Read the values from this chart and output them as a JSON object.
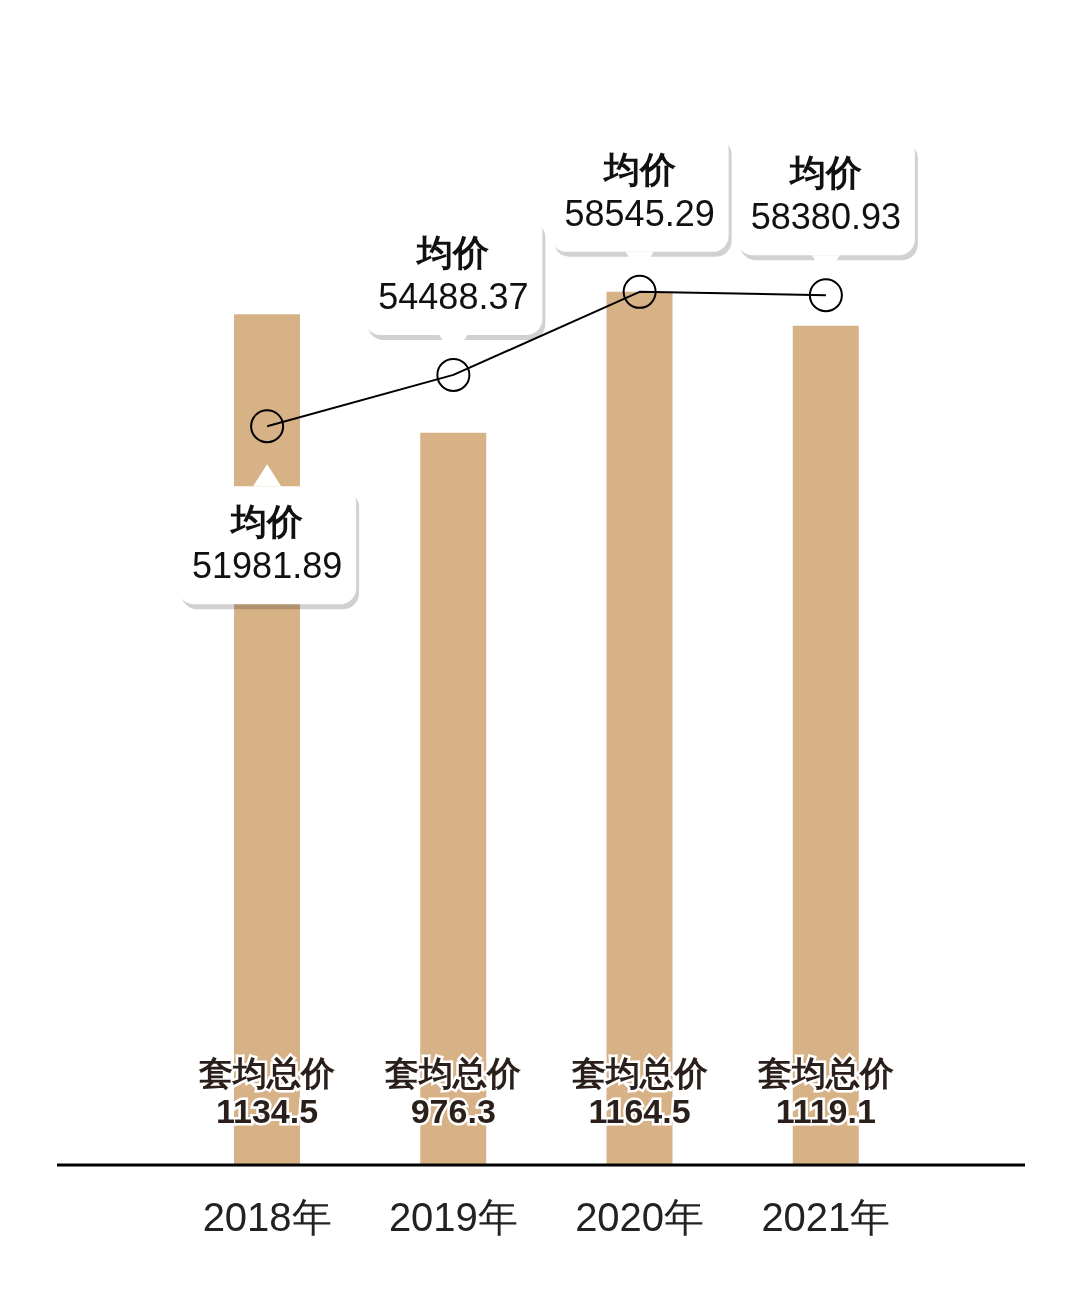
{
  "chart_data": {
    "type": "bar",
    "categories": [
      "2018年",
      "2019年",
      "2020年",
      "2021年"
    ],
    "series": [
      {
        "color": "#d8b287",
        "values": [
          1134.5,
          976.3,
          1164.5,
          1119.1
        ],
        "value_labels": [
          "套均总价\n1134.5",
          "套均总价\n976.3",
          "套均总价\n1164.5",
          "套均总价\n1119.1"
        ]
      },
      {
        "type": "line",
        "axis": "y2",
        "color": "#000000",
        "values": [
          51981.89,
          54488.37,
          58545.29,
          58380.93
        ],
        "value_labels": [
          "均价\n51981.89",
          "均价\n54488.37",
          "均价\n58545.29",
          "均价\n58380.93"
        ]
      }
    ],
    "tick_labels": "x",
    "grid": false,
    "legend": false,
    "marker": "circle",
    "line_style": "solid"
  }
}
